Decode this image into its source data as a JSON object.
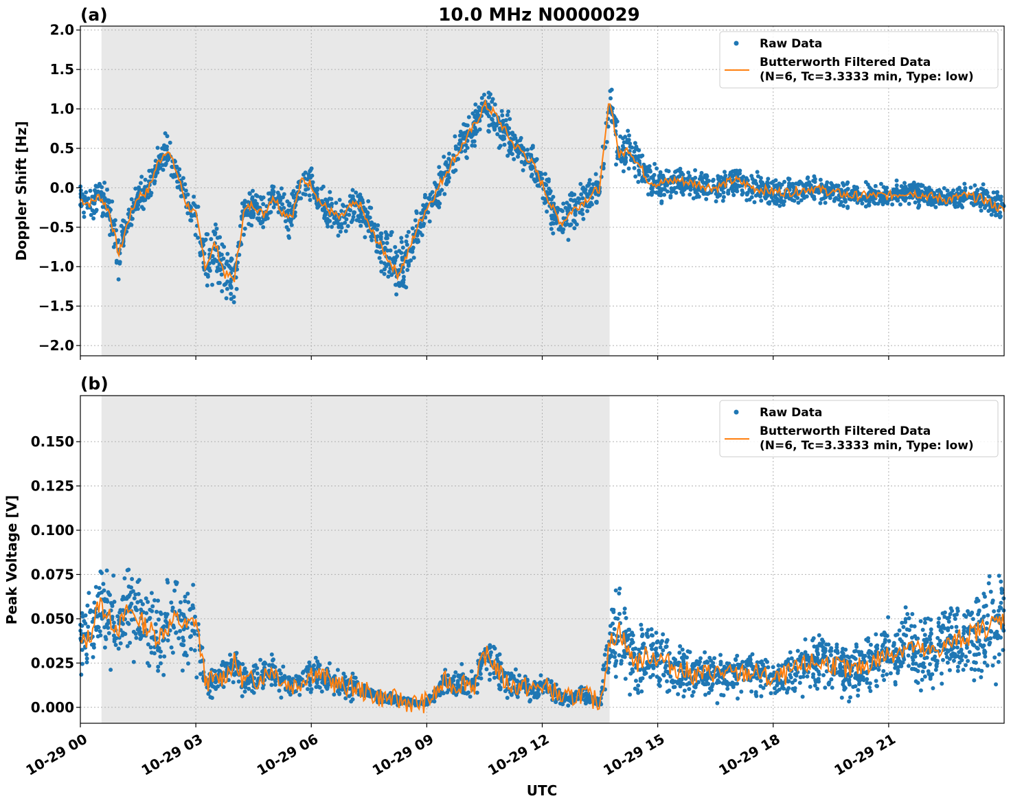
{
  "title": "10.0 MHz N0000029",
  "xlabel": "UTC",
  "colors": {
    "raw": "#1f77b4",
    "filtered": "#ff7f0e",
    "shade": "#e8e8e8"
  },
  "x_ticks": [
    "10-29 00",
    "10-29 03",
    "10-29 06",
    "10-29 09",
    "10-29 12",
    "10-29 15",
    "10-29 18",
    "10-29 21"
  ],
  "legend": {
    "raw": "Raw Data",
    "filtered_line1": "Butterworth Filtered Data",
    "filtered_line2": "(N=6, Tc=3.3333 min, Type: low)"
  },
  "chart_data": [
    {
      "type": "scatter",
      "panel": "(a)",
      "title": "10.0 MHz N0000029",
      "xlabel": "",
      "ylabel": "Doppler Shift [Hz]",
      "xlim_hours": [
        0,
        24
      ],
      "ylim": [
        -2.13,
        2.05
      ],
      "y_ticks": [
        "2.0",
        "1.5",
        "1.0",
        "0.5",
        "0.0",
        "−0.5",
        "−1.0",
        "−1.5",
        "−2.0"
      ],
      "y_tick_values": [
        2.0,
        1.5,
        1.0,
        0.5,
        0.0,
        -0.5,
        -1.0,
        -1.5,
        -2.0
      ],
      "shaded_hours": [
        0.55,
        13.75
      ],
      "grid": true,
      "legend_position": "upper right",
      "series": [
        {
          "name": "Butterworth Filtered Data (N=6, Tc=3.3333 min, Type: low)",
          "x_hours": [
            0,
            0.25,
            0.5,
            0.75,
            1.0,
            1.25,
            1.5,
            1.75,
            2.0,
            2.25,
            2.5,
            2.75,
            3.0,
            3.25,
            3.5,
            3.75,
            4.0,
            4.25,
            4.5,
            4.75,
            5.0,
            5.25,
            5.5,
            5.75,
            6.0,
            6.25,
            6.5,
            6.75,
            7.0,
            7.25,
            7.5,
            7.75,
            8.0,
            8.25,
            8.5,
            8.75,
            9.0,
            9.25,
            9.5,
            9.75,
            10.0,
            10.25,
            10.5,
            10.75,
            11.0,
            11.25,
            11.5,
            11.75,
            12.0,
            12.25,
            12.5,
            12.75,
            13.0,
            13.25,
            13.5,
            13.75,
            14.0,
            14.25,
            14.5,
            14.75,
            15.0,
            15.5,
            16.0,
            16.5,
            17.0,
            17.5,
            18.0,
            18.5,
            19.0,
            19.5,
            20.0,
            20.5,
            21.0,
            21.5,
            22.0,
            22.5,
            23.0,
            23.5,
            24.0
          ],
          "values": [
            -0.15,
            -0.2,
            -0.1,
            -0.3,
            -0.85,
            -0.4,
            -0.1,
            -0.05,
            0.3,
            0.5,
            0.2,
            -0.2,
            -0.35,
            -1.0,
            -0.7,
            -1.1,
            -1.15,
            -0.3,
            -0.2,
            -0.35,
            -0.1,
            -0.3,
            -0.35,
            0.1,
            0.05,
            -0.2,
            -0.3,
            -0.4,
            -0.25,
            -0.2,
            -0.5,
            -0.7,
            -0.9,
            -1.1,
            -0.85,
            -0.5,
            -0.25,
            -0.05,
            0.2,
            0.4,
            0.6,
            0.8,
            1.05,
            0.95,
            0.75,
            0.55,
            0.45,
            0.3,
            0.05,
            -0.25,
            -0.45,
            -0.3,
            -0.2,
            -0.1,
            0.0,
            1.15,
            0.4,
            0.5,
            0.3,
            0.1,
            0.05,
            0.1,
            0.05,
            0.0,
            0.1,
            0.0,
            -0.05,
            -0.05,
            0.0,
            -0.05,
            -0.1,
            -0.1,
            -0.1,
            -0.05,
            -0.1,
            -0.15,
            -0.1,
            -0.15,
            -0.3
          ]
        },
        {
          "name": "Raw Data",
          "spread": [
            0.3,
            0.35,
            0.3,
            0.35,
            0.4,
            0.3,
            0.3,
            0.3,
            0.25,
            0.3,
            0.3,
            0.3,
            0.35,
            0.5,
            0.45,
            0.5,
            0.5,
            0.35,
            0.35,
            0.35,
            0.35,
            0.35,
            0.35,
            0.35,
            0.3,
            0.3,
            0.3,
            0.35,
            0.35,
            0.35,
            0.4,
            0.4,
            0.45,
            0.5,
            0.5,
            0.4,
            0.35,
            0.3,
            0.35,
            0.35,
            0.35,
            0.4,
            0.45,
            0.4,
            0.35,
            0.35,
            0.35,
            0.3,
            0.3,
            0.4,
            0.4,
            0.35,
            0.35,
            0.35,
            0.3,
            0.4,
            0.4,
            0.4,
            0.35,
            0.3,
            0.3,
            0.25,
            0.25,
            0.25,
            0.25,
            0.25,
            0.25,
            0.25,
            0.25,
            0.2,
            0.2,
            0.2,
            0.2,
            0.2,
            0.2,
            0.2,
            0.2,
            0.25,
            0.3
          ]
        }
      ]
    },
    {
      "type": "scatter",
      "panel": "(b)",
      "title": "",
      "xlabel": "UTC",
      "ylabel": "Peak Voltage [V]",
      "xlim_hours": [
        0,
        24
      ],
      "ylim": [
        -0.009,
        0.176
      ],
      "y_ticks": [
        "0.150",
        "0.125",
        "0.100",
        "0.075",
        "0.050",
        "0.025",
        "0.000"
      ],
      "y_tick_values": [
        0.15,
        0.125,
        0.1,
        0.075,
        0.05,
        0.025,
        0.0
      ],
      "shaded_hours": [
        0.55,
        13.75
      ],
      "grid": true,
      "legend_position": "upper right",
      "series": [
        {
          "name": "Butterworth Filtered Data (N=6, Tc=3.3333 min, Type: low)",
          "x_hours": [
            0,
            0.25,
            0.5,
            0.75,
            1.0,
            1.25,
            1.5,
            1.75,
            2.0,
            2.25,
            2.5,
            2.75,
            3.0,
            3.25,
            3.5,
            3.75,
            4.0,
            4.25,
            4.5,
            4.75,
            5.0,
            5.25,
            5.5,
            5.75,
            6.0,
            6.25,
            6.5,
            6.75,
            7.0,
            7.25,
            7.5,
            7.75,
            8.0,
            8.25,
            8.5,
            8.75,
            9.0,
            9.25,
            9.5,
            9.75,
            10.0,
            10.25,
            10.5,
            10.75,
            11.0,
            11.25,
            11.5,
            11.75,
            12.0,
            12.25,
            12.5,
            12.75,
            13.0,
            13.25,
            13.5,
            13.75,
            14.0,
            14.25,
            14.5,
            14.75,
            15.0,
            15.5,
            16.0,
            16.5,
            17.0,
            17.5,
            18.0,
            18.5,
            19.0,
            19.5,
            20.0,
            20.5,
            21.0,
            21.5,
            22.0,
            22.5,
            23.0,
            23.5,
            24.0
          ],
          "values": [
            0.035,
            0.04,
            0.06,
            0.05,
            0.045,
            0.055,
            0.05,
            0.045,
            0.04,
            0.045,
            0.05,
            0.045,
            0.05,
            0.015,
            0.015,
            0.018,
            0.025,
            0.015,
            0.015,
            0.018,
            0.022,
            0.015,
            0.012,
            0.015,
            0.02,
            0.018,
            0.015,
            0.012,
            0.012,
            0.01,
            0.008,
            0.006,
            0.005,
            0.004,
            0.003,
            0.002,
            0.003,
            0.008,
            0.015,
            0.012,
            0.015,
            0.012,
            0.03,
            0.025,
            0.015,
            0.012,
            0.012,
            0.01,
            0.012,
            0.01,
            0.005,
            0.005,
            0.008,
            0.005,
            0.003,
            0.035,
            0.045,
            0.03,
            0.025,
            0.03,
            0.028,
            0.022,
            0.018,
            0.02,
            0.018,
            0.02,
            0.015,
            0.02,
            0.025,
            0.025,
            0.02,
            0.025,
            0.03,
            0.035,
            0.03,
            0.035,
            0.04,
            0.045,
            0.05
          ]
        },
        {
          "name": "Raw Data",
          "spread": [
            0.025,
            0.03,
            0.04,
            0.035,
            0.035,
            0.04,
            0.035,
            0.035,
            0.03,
            0.035,
            0.035,
            0.035,
            0.035,
            0.012,
            0.012,
            0.012,
            0.015,
            0.012,
            0.012,
            0.015,
            0.015,
            0.012,
            0.01,
            0.012,
            0.015,
            0.012,
            0.012,
            0.01,
            0.01,
            0.008,
            0.006,
            0.005,
            0.004,
            0.004,
            0.003,
            0.002,
            0.003,
            0.006,
            0.01,
            0.01,
            0.012,
            0.01,
            0.015,
            0.015,
            0.012,
            0.01,
            0.01,
            0.008,
            0.008,
            0.008,
            0.005,
            0.005,
            0.006,
            0.005,
            0.003,
            0.03,
            0.035,
            0.03,
            0.025,
            0.025,
            0.025,
            0.02,
            0.018,
            0.02,
            0.018,
            0.018,
            0.015,
            0.018,
            0.02,
            0.022,
            0.02,
            0.022,
            0.025,
            0.028,
            0.028,
            0.03,
            0.032,
            0.035,
            0.04
          ]
        }
      ]
    }
  ]
}
